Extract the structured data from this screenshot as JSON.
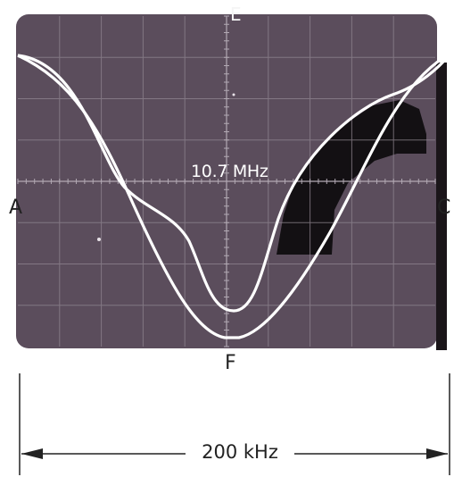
{
  "display": {
    "marker_top": "E",
    "marker_bottom": "F",
    "marker_left": "A",
    "marker_right": "C",
    "center_frequency": "10.7 MHz",
    "span": "200 kHz"
  },
  "colors": {
    "screen": "#5b4d5c",
    "grid": "#8f8590",
    "trace": "#ffffff",
    "shaded_region": "#131013",
    "dimension_line": "#222222"
  }
}
